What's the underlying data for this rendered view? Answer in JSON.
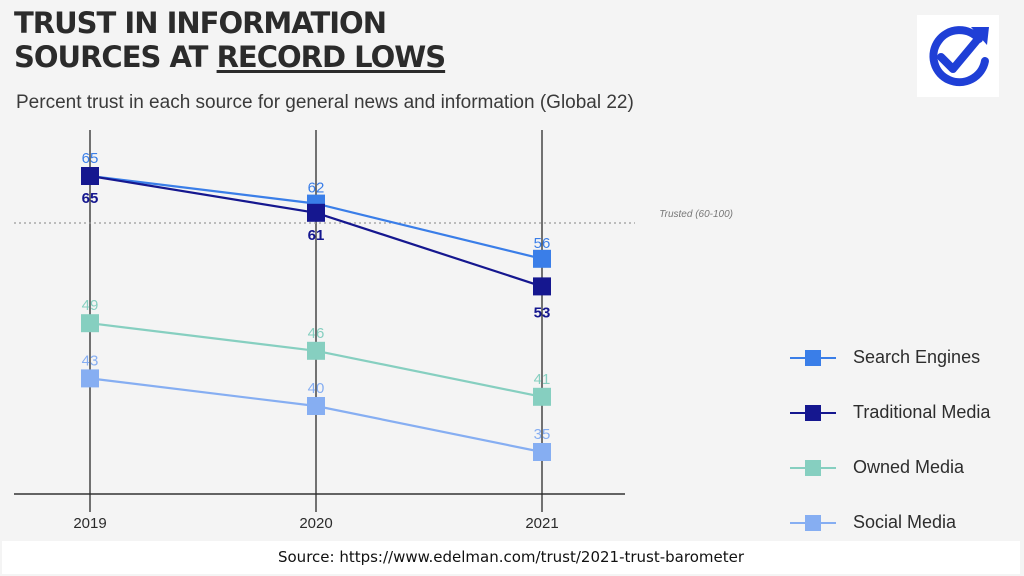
{
  "title": {
    "line1": "TRUST IN INFORMATION",
    "line2_prefix": "SOURCES AT ",
    "line2_underlined": "RECORD LOWS"
  },
  "subtitle": "Percent trust in each source for general news and information (Global 22)",
  "logo": {
    "icon": "check-refresh-icon",
    "color": "#1f3fd6"
  },
  "source": "Source: https://www.edelman.com/trust/2021-trust-barometer",
  "chart_data": {
    "type": "line",
    "categories": [
      "2019",
      "2020",
      "2021"
    ],
    "series": [
      {
        "name": "Search Engines",
        "values": [
          65,
          62,
          56
        ],
        "color": "#3a7ee8"
      },
      {
        "name": "Traditional Media",
        "values": [
          65,
          61,
          53
        ],
        "color": "#15178f"
      },
      {
        "name": "Owned Media",
        "values": [
          49,
          46,
          41
        ],
        "color": "#86cfc0"
      },
      {
        "name": "Social Media",
        "values": [
          43,
          40,
          35
        ],
        "color": "#86aef2"
      }
    ],
    "reference_line": {
      "value": 60,
      "label": "Trusted (60-100)"
    },
    "legend_position": "right",
    "grid": false
  }
}
